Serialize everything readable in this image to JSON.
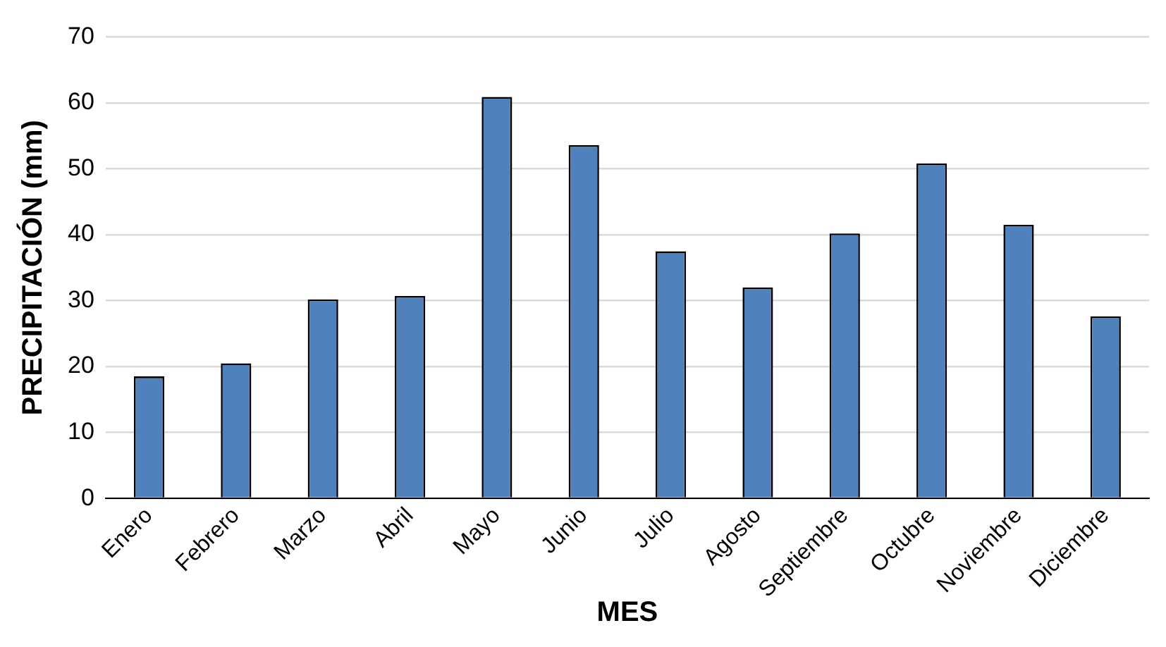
{
  "chart_data": {
    "type": "bar",
    "xlabel": "MES",
    "ylabel": "PRECIPITACIÓN (mm)",
    "categories": [
      "Enero",
      "Febrero",
      "Marzo",
      "Abril",
      "Mayo",
      "Junio",
      "Julio",
      "Agosto",
      "Septiembre",
      "Octubre",
      "Noviembre",
      "Diciembre"
    ],
    "values": [
      18.5,
      20.5,
      30.2,
      30.7,
      60.9,
      53.6,
      37.5,
      32.0,
      40.2,
      50.8,
      41.5,
      27.6
    ],
    "color": "#4f81bd",
    "ylim": [
      0,
      70
    ],
    "yticks": [
      0,
      10,
      20,
      30,
      40,
      50,
      60,
      70
    ],
    "grid": "y"
  }
}
